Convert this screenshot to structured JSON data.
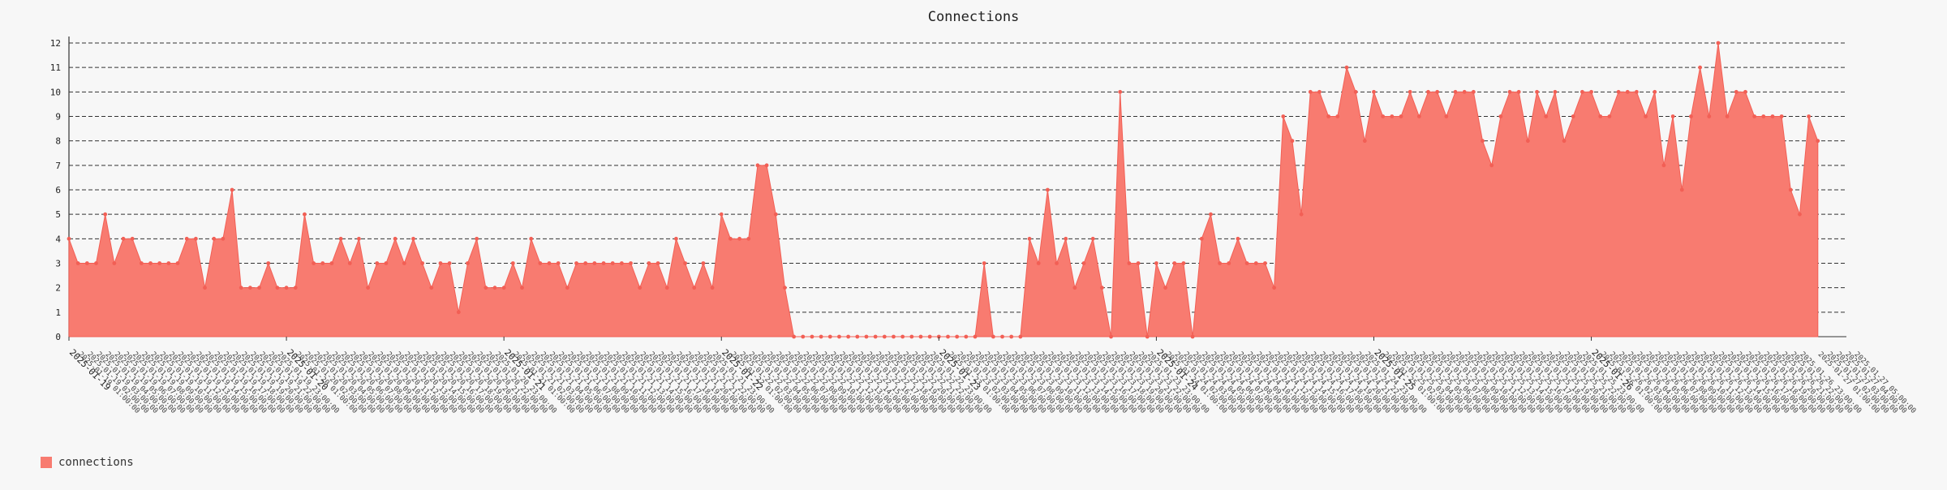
{
  "colors": {
    "series": "#f87b70",
    "series_stroke": "#f25f55",
    "grid": "#333333",
    "text": "#222222"
  },
  "chart_data": {
    "type": "area",
    "title": "Connections",
    "xlabel": "",
    "ylabel": "",
    "ylim": [
      0,
      12
    ],
    "yticks": [
      0,
      1,
      2,
      3,
      4,
      5,
      6,
      7,
      8,
      9,
      10,
      11,
      12
    ],
    "grid": true,
    "legend_position": "bottom-left",
    "x_start": "2025-01-19 00:00",
    "x_end": "2025-01-27 04:00",
    "x_major_ticks": [
      "2025-01-19",
      "2025-01-20",
      "2025-01-21",
      "2025-01-22",
      "2025-01-23",
      "2025-01-24",
      "2025-01-25",
      "2025-01-26"
    ],
    "x_interval_hours": 1,
    "series": [
      {
        "name": "connections",
        "values": [
          4,
          3,
          3,
          3,
          5,
          3,
          4,
          4,
          3,
          3,
          3,
          3,
          3,
          4,
          4,
          2,
          4,
          4,
          6,
          2,
          2,
          2,
          3,
          2,
          2,
          2,
          5,
          3,
          3,
          3,
          4,
          3,
          4,
          2,
          3,
          3,
          4,
          3,
          4,
          3,
          2,
          3,
          3,
          1,
          3,
          4,
          2,
          2,
          2,
          3,
          2,
          4,
          3,
          3,
          3,
          2,
          3,
          3,
          3,
          3,
          3,
          3,
          3,
          2,
          3,
          3,
          2,
          4,
          3,
          2,
          3,
          2,
          5,
          4,
          4,
          4,
          7,
          7,
          5,
          2,
          0,
          0,
          0,
          0,
          0,
          0,
          0,
          0,
          0,
          0,
          0,
          0,
          0,
          0,
          0,
          0,
          0,
          0,
          0,
          0,
          0,
          3,
          0,
          0,
          0,
          0,
          4,
          3,
          6,
          3,
          4,
          2,
          3,
          4,
          2,
          0,
          10,
          3,
          3,
          0,
          3,
          2,
          3,
          3,
          0,
          4,
          5,
          3,
          3,
          4,
          3,
          3,
          3,
          2,
          9,
          8,
          5,
          10,
          10,
          9,
          9,
          11,
          10,
          8,
          10,
          9,
          9,
          9,
          10,
          9,
          10,
          10,
          9,
          10,
          10,
          10,
          8,
          7,
          9,
          10,
          10,
          8,
          10,
          9,
          10,
          8,
          9,
          10,
          10,
          9,
          9,
          10,
          10,
          10,
          9,
          10,
          7,
          9,
          6,
          9,
          11,
          9,
          12,
          9,
          10,
          10,
          9,
          9,
          9,
          9,
          6,
          5,
          9,
          8
        ]
      }
    ]
  }
}
